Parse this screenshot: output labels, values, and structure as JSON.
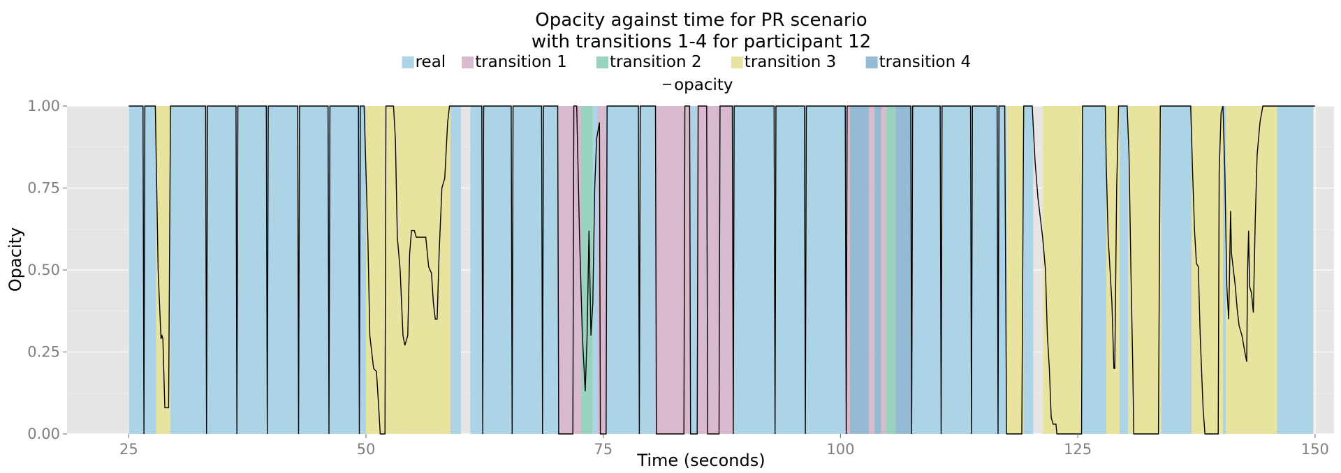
{
  "chart_data": {
    "type": "area",
    "title_line1": "Opacity against time for PR scenario",
    "title_line2": "with transitions 1-4 for participant 12",
    "xlabel": "Time (seconds)",
    "ylabel": "Opacity",
    "xlim": [
      18.5,
      152
    ],
    "ylim": [
      0,
      1
    ],
    "x_ticks": [
      25,
      50,
      75,
      100,
      125,
      150
    ],
    "y_ticks": [
      0,
      0.25,
      0.5,
      0.75,
      1
    ],
    "y_tick_labels": [
      "0.00",
      "0.25",
      "0.50",
      "0.75",
      "1.00"
    ],
    "grid": true,
    "legend_position": "top",
    "categories": [
      {
        "name": "real",
        "color": "#acd3e6"
      },
      {
        "name": "transition 1",
        "color": "#d9b9cd"
      },
      {
        "name": "transition 2",
        "color": "#98d3bd"
      },
      {
        "name": "transition 3",
        "color": "#e8e39f"
      },
      {
        "name": "transition 4",
        "color": "#95bbd4"
      }
    ],
    "line_series": {
      "name": "opacity",
      "color": "#000000"
    },
    "bands": [
      {
        "start": 25.0,
        "end": 26.6,
        "category": "real"
      },
      {
        "start": 26.6,
        "end": 27.9,
        "category": "real"
      },
      {
        "start": 27.9,
        "end": 29.4,
        "category": "transition 3"
      },
      {
        "start": 29.4,
        "end": 33.2,
        "category": "real"
      },
      {
        "start": 33.2,
        "end": 36.4,
        "category": "real"
      },
      {
        "start": 36.4,
        "end": 39.6,
        "category": "real"
      },
      {
        "start": 39.6,
        "end": 42.9,
        "category": "real"
      },
      {
        "start": 42.9,
        "end": 46.1,
        "category": "real"
      },
      {
        "start": 46.1,
        "end": 49.3,
        "category": "real"
      },
      {
        "start": 49.3,
        "end": 50.0,
        "category": "real"
      },
      {
        "start": 50.0,
        "end": 53.4,
        "category": "transition 3"
      },
      {
        "start": 53.4,
        "end": 58.9,
        "category": "transition 3"
      },
      {
        "start": 58.9,
        "end": 60.0,
        "category": "real"
      },
      {
        "start": 61.0,
        "end": 62.3,
        "category": "real"
      },
      {
        "start": 62.3,
        "end": 65.4,
        "category": "real"
      },
      {
        "start": 65.4,
        "end": 68.6,
        "category": "real"
      },
      {
        "start": 68.6,
        "end": 70.3,
        "category": "real"
      },
      {
        "start": 70.3,
        "end": 71.9,
        "category": "transition 1"
      },
      {
        "start": 71.9,
        "end": 72.7,
        "category": "transition 1"
      },
      {
        "start": 72.7,
        "end": 73.3,
        "category": "transition 2"
      },
      {
        "start": 73.3,
        "end": 73.9,
        "category": "transition 2"
      },
      {
        "start": 73.9,
        "end": 74.4,
        "category": "real"
      },
      {
        "start": 74.4,
        "end": 75.3,
        "category": "transition 1"
      },
      {
        "start": 75.3,
        "end": 78.8,
        "category": "real"
      },
      {
        "start": 78.8,
        "end": 80.5,
        "category": "real"
      },
      {
        "start": 80.5,
        "end": 83.6,
        "category": "transition 1"
      },
      {
        "start": 83.6,
        "end": 84.2,
        "category": "transition 1"
      },
      {
        "start": 84.2,
        "end": 84.9,
        "category": "real"
      },
      {
        "start": 84.9,
        "end": 86.0,
        "category": "transition 1"
      },
      {
        "start": 86.0,
        "end": 87.3,
        "category": "transition 1"
      },
      {
        "start": 87.3,
        "end": 88.7,
        "category": "transition 1"
      },
      {
        "start": 88.7,
        "end": 93.1,
        "category": "real"
      },
      {
        "start": 93.1,
        "end": 96.3,
        "category": "real"
      },
      {
        "start": 96.3,
        "end": 100.5,
        "category": "real"
      },
      {
        "start": 100.5,
        "end": 101.0,
        "category": "transition 1"
      },
      {
        "start": 101.0,
        "end": 103.0,
        "category": "transition 4"
      },
      {
        "start": 103.0,
        "end": 103.6,
        "category": "transition 1"
      },
      {
        "start": 103.6,
        "end": 104.3,
        "category": "transition 4"
      },
      {
        "start": 104.3,
        "end": 104.8,
        "category": "transition 1"
      },
      {
        "start": 104.8,
        "end": 105.8,
        "category": "transition 2"
      },
      {
        "start": 105.8,
        "end": 107.5,
        "category": "transition 4"
      },
      {
        "start": 107.5,
        "end": 110.6,
        "category": "real"
      },
      {
        "start": 110.6,
        "end": 113.8,
        "category": "real"
      },
      {
        "start": 113.8,
        "end": 116.6,
        "category": "real"
      },
      {
        "start": 116.6,
        "end": 117.5,
        "category": "real"
      },
      {
        "start": 117.5,
        "end": 119.3,
        "category": "transition 3"
      },
      {
        "start": 119.3,
        "end": 120.3,
        "category": "real"
      },
      {
        "start": 121.3,
        "end": 125.5,
        "category": "transition 3"
      },
      {
        "start": 125.5,
        "end": 128.0,
        "category": "real"
      },
      {
        "start": 128.0,
        "end": 129.4,
        "category": "transition 3"
      },
      {
        "start": 129.4,
        "end": 130.3,
        "category": "real"
      },
      {
        "start": 130.3,
        "end": 133.8,
        "category": "transition 3"
      },
      {
        "start": 133.8,
        "end": 137.0,
        "category": "real"
      },
      {
        "start": 137.0,
        "end": 140.3,
        "category": "transition 3"
      },
      {
        "start": 140.3,
        "end": 140.6,
        "category": "real"
      },
      {
        "start": 140.6,
        "end": 146.0,
        "category": "transition 3"
      },
      {
        "start": 146.0,
        "end": 149.8,
        "category": "real"
      }
    ],
    "opacity_points": [
      [
        25.0,
        1.0
      ],
      [
        26.5,
        1.0
      ],
      [
        26.6,
        0.0
      ],
      [
        26.7,
        1.0
      ],
      [
        27.8,
        1.0
      ],
      [
        28.1,
        0.5
      ],
      [
        28.4,
        0.29
      ],
      [
        28.5,
        0.3
      ],
      [
        28.6,
        0.29
      ],
      [
        28.8,
        0.08
      ],
      [
        29.2,
        0.08
      ],
      [
        29.4,
        1.0
      ],
      [
        33.1,
        1.0
      ],
      [
        33.2,
        0.0
      ],
      [
        33.3,
        1.0
      ],
      [
        36.3,
        1.0
      ],
      [
        36.4,
        0.0
      ],
      [
        36.5,
        1.0
      ],
      [
        39.5,
        1.0
      ],
      [
        39.6,
        0.0
      ],
      [
        39.7,
        1.0
      ],
      [
        42.8,
        1.0
      ],
      [
        42.9,
        0.0
      ],
      [
        43.0,
        1.0
      ],
      [
        46.0,
        1.0
      ],
      [
        46.1,
        0.0
      ],
      [
        46.2,
        1.0
      ],
      [
        49.2,
        1.0
      ],
      [
        49.3,
        0.0
      ],
      [
        49.4,
        1.0
      ],
      [
        49.8,
        1.0
      ],
      [
        50.0,
        0.8
      ],
      [
        50.2,
        0.6
      ],
      [
        50.4,
        0.3
      ],
      [
        50.8,
        0.2
      ],
      [
        51.1,
        0.19
      ],
      [
        51.3,
        0.1
      ],
      [
        51.5,
        0.0
      ],
      [
        52.0,
        0.0
      ],
      [
        52.1,
        1.0
      ],
      [
        52.9,
        1.0
      ],
      [
        53.1,
        0.9
      ],
      [
        53.3,
        0.6
      ],
      [
        53.6,
        0.5
      ],
      [
        53.9,
        0.3
      ],
      [
        54.1,
        0.27
      ],
      [
        54.4,
        0.3
      ],
      [
        54.6,
        0.55
      ],
      [
        54.8,
        0.62
      ],
      [
        55.1,
        0.62
      ],
      [
        55.3,
        0.6
      ],
      [
        56.3,
        0.6
      ],
      [
        56.6,
        0.51
      ],
      [
        56.9,
        0.49
      ],
      [
        57.1,
        0.4
      ],
      [
        57.3,
        0.35
      ],
      [
        57.5,
        0.35
      ],
      [
        57.7,
        0.55
      ],
      [
        58.0,
        0.75
      ],
      [
        58.3,
        0.78
      ],
      [
        58.6,
        0.95
      ],
      [
        58.8,
        1.0
      ],
      [
        60.0,
        1.0
      ],
      [
        61.0,
        1.0
      ],
      [
        62.2,
        1.0
      ],
      [
        62.3,
        0.0
      ],
      [
        62.4,
        1.0
      ],
      [
        65.3,
        1.0
      ],
      [
        65.4,
        0.0
      ],
      [
        65.5,
        1.0
      ],
      [
        68.5,
        1.0
      ],
      [
        68.6,
        0.0
      ],
      [
        68.7,
        1.0
      ],
      [
        70.2,
        1.0
      ],
      [
        70.3,
        0.0
      ],
      [
        71.8,
        0.0
      ],
      [
        71.9,
        1.0
      ],
      [
        72.2,
        1.0
      ],
      [
        72.5,
        0.6
      ],
      [
        72.8,
        0.3
      ],
      [
        73.1,
        0.13
      ],
      [
        73.3,
        0.3
      ],
      [
        73.5,
        0.62
      ],
      [
        73.7,
        0.3
      ],
      [
        73.9,
        0.4
      ],
      [
        74.1,
        0.75
      ],
      [
        74.3,
        0.9
      ],
      [
        74.6,
        0.95
      ],
      [
        74.7,
        0.0
      ],
      [
        75.3,
        0.0
      ],
      [
        75.4,
        1.0
      ],
      [
        78.7,
        1.0
      ],
      [
        78.8,
        0.0
      ],
      [
        78.9,
        1.0
      ],
      [
        80.5,
        1.0
      ],
      [
        80.6,
        0.0
      ],
      [
        83.5,
        0.0
      ],
      [
        83.6,
        1.0
      ],
      [
        84.1,
        1.0
      ],
      [
        84.2,
        0.0
      ],
      [
        84.9,
        0.0
      ],
      [
        85.0,
        1.0
      ],
      [
        85.9,
        1.0
      ],
      [
        86.0,
        0.0
      ],
      [
        87.2,
        0.0
      ],
      [
        87.3,
        1.0
      ],
      [
        88.6,
        1.0
      ],
      [
        88.7,
        0.0
      ],
      [
        88.8,
        1.0
      ],
      [
        93.0,
        1.0
      ],
      [
        93.1,
        0.0
      ],
      [
        93.2,
        1.0
      ],
      [
        96.2,
        1.0
      ],
      [
        96.3,
        0.0
      ],
      [
        96.4,
        1.0
      ],
      [
        100.5,
        1.0
      ],
      [
        100.6,
        0.0
      ],
      [
        100.7,
        1.0
      ],
      [
        107.4,
        1.0
      ],
      [
        107.5,
        0.0
      ],
      [
        107.6,
        1.0
      ],
      [
        110.5,
        1.0
      ],
      [
        110.6,
        0.0
      ],
      [
        110.7,
        1.0
      ],
      [
        113.7,
        1.0
      ],
      [
        113.8,
        0.0
      ],
      [
        113.9,
        1.0
      ],
      [
        116.5,
        1.0
      ],
      [
        116.6,
        0.0
      ],
      [
        116.7,
        1.0
      ],
      [
        117.3,
        1.0
      ],
      [
        117.5,
        0.0
      ],
      [
        119.1,
        0.0
      ],
      [
        119.3,
        1.0
      ],
      [
        120.2,
        1.0
      ],
      [
        120.5,
        0.83
      ],
      [
        120.8,
        0.72
      ],
      [
        121.3,
        0.6
      ],
      [
        121.6,
        0.5
      ],
      [
        121.8,
        0.3
      ],
      [
        122.0,
        0.2
      ],
      [
        122.2,
        0.05
      ],
      [
        122.4,
        0.03
      ],
      [
        122.7,
        0.03
      ],
      [
        122.8,
        0.0
      ],
      [
        125.4,
        0.0
      ],
      [
        125.5,
        1.0
      ],
      [
        127.9,
        1.0
      ],
      [
        128.0,
        0.82
      ],
      [
        128.2,
        0.6
      ],
      [
        128.4,
        0.5
      ],
      [
        128.6,
        0.4
      ],
      [
        128.8,
        0.2
      ],
      [
        128.9,
        0.2
      ],
      [
        129.1,
        0.75
      ],
      [
        129.3,
        1.0
      ],
      [
        130.2,
        1.0
      ],
      [
        130.4,
        0.85
      ],
      [
        130.6,
        0.5
      ],
      [
        130.8,
        0.2
      ],
      [
        130.9,
        0.0
      ],
      [
        133.5,
        0.0
      ],
      [
        133.7,
        1.0
      ],
      [
        136.9,
        1.0
      ],
      [
        137.1,
        0.8
      ],
      [
        137.3,
        0.62
      ],
      [
        137.5,
        0.52
      ],
      [
        137.7,
        0.51
      ],
      [
        137.9,
        0.3
      ],
      [
        138.2,
        0.08
      ],
      [
        138.4,
        0.0
      ],
      [
        139.8,
        0.0
      ],
      [
        139.9,
        0.8
      ],
      [
        140.1,
        0.98
      ],
      [
        140.3,
        1.0
      ],
      [
        140.5,
        0.8
      ],
      [
        140.7,
        0.45
      ],
      [
        140.9,
        0.35
      ],
      [
        141.0,
        0.5
      ],
      [
        141.1,
        0.68
      ],
      [
        141.2,
        0.55
      ],
      [
        141.4,
        0.5
      ],
      [
        141.6,
        0.45
      ],
      [
        141.8,
        0.38
      ],
      [
        142.0,
        0.33
      ],
      [
        142.3,
        0.3
      ],
      [
        142.6,
        0.25
      ],
      [
        142.8,
        0.22
      ],
      [
        142.9,
        0.5
      ],
      [
        143.0,
        0.62
      ],
      [
        143.1,
        0.45
      ],
      [
        143.3,
        0.43
      ],
      [
        143.5,
        0.37
      ],
      [
        143.7,
        0.65
      ],
      [
        143.9,
        0.85
      ],
      [
        144.2,
        0.95
      ],
      [
        144.5,
        1.0
      ],
      [
        150.0,
        1.0
      ]
    ]
  }
}
